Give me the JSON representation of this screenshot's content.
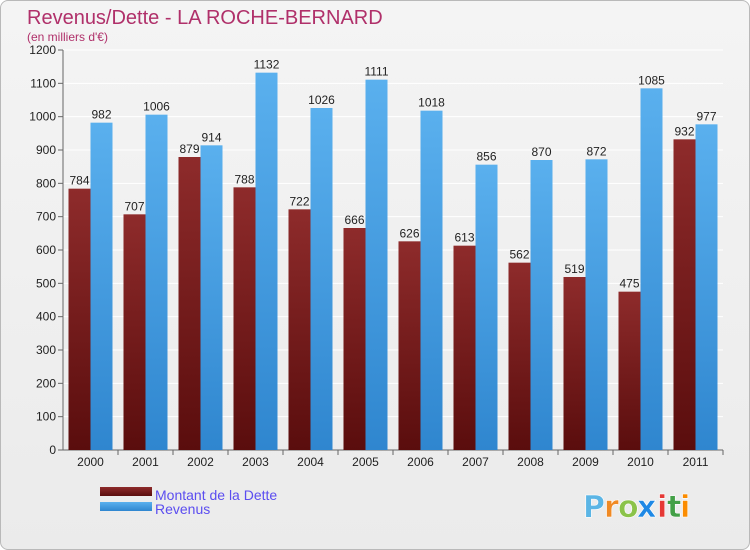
{
  "chart_data": {
    "type": "bar",
    "title": "Revenus/Dette - LA ROCHE-BERNARD",
    "subtitle": "(en milliers d'€)",
    "categories": [
      "2000",
      "2001",
      "2002",
      "2003",
      "2004",
      "2005",
      "2006",
      "2007",
      "2008",
      "2009",
      "2010",
      "2011"
    ],
    "series": [
      {
        "name": "Montant de la Dette",
        "color": "#7a1e1e",
        "values": [
          784,
          707,
          879,
          788,
          722,
          666,
          626,
          613,
          562,
          519,
          475,
          932
        ]
      },
      {
        "name": "Revenus",
        "color": "#4aa3e6",
        "values": [
          982,
          1006,
          914,
          1132,
          1026,
          1111,
          1018,
          856,
          870,
          872,
          1085,
          977
        ]
      }
    ],
    "y_ticks": [
      0,
      100,
      200,
      300,
      400,
      500,
      600,
      700,
      800,
      900,
      1000,
      1100,
      1200
    ],
    "ylim": [
      0,
      1200
    ],
    "grid": true,
    "legend_position": "bottom-left"
  },
  "brand": {
    "letters": [
      "P",
      "r",
      "o",
      "x",
      "i",
      "t",
      "i"
    ],
    "colors": [
      "#5bb5e5",
      "#f08a24",
      "#8bc34a",
      "#1e88e5",
      "#e53935",
      "#43a047",
      "#fb8c00"
    ]
  }
}
